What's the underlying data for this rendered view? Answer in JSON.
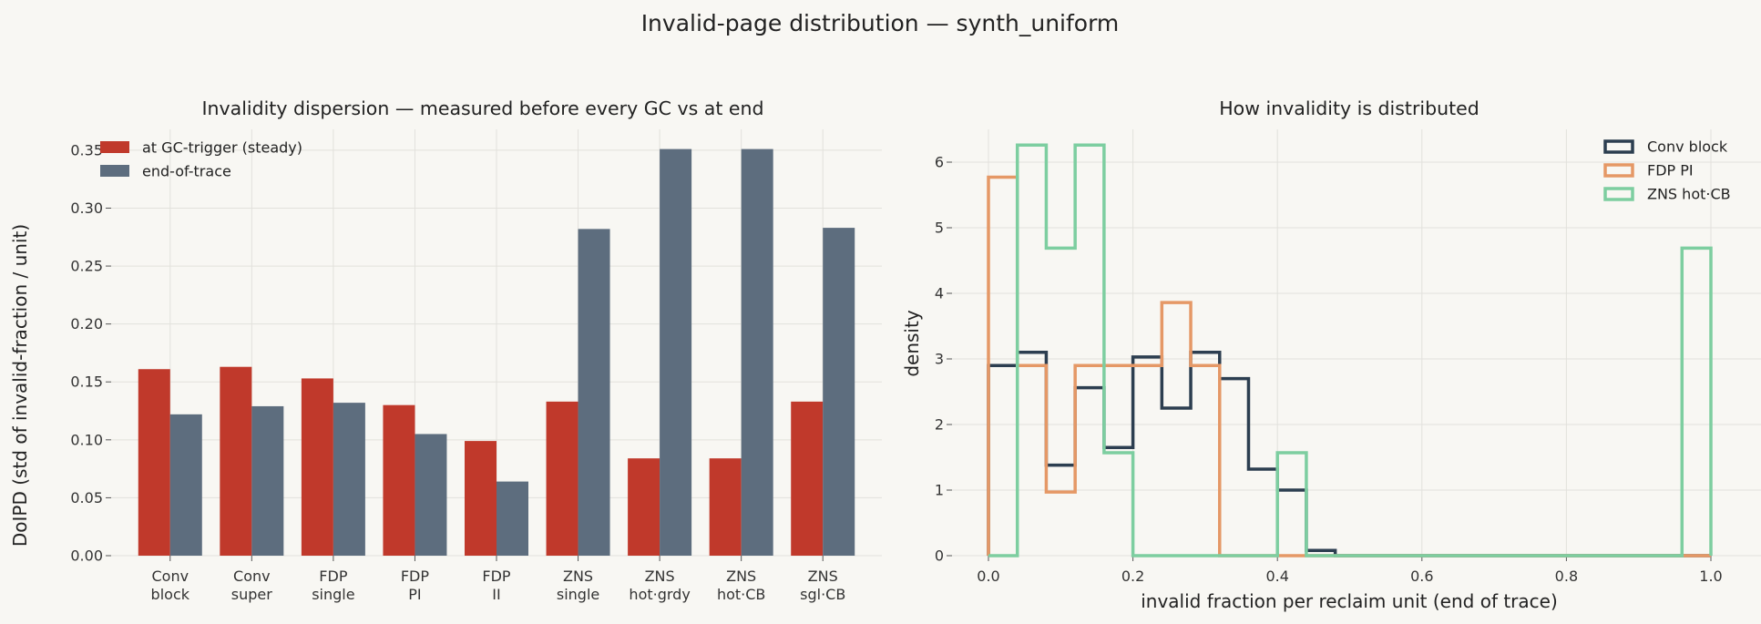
{
  "figure": {
    "suptitle": "Invalid-page distribution — synth_uniform"
  },
  "chart_data": [
    {
      "type": "bar",
      "title": "Invalidity dispersion — measured before every GC vs at end",
      "ylabel": "DoIPD  (std of invalid-fraction / unit)",
      "xlabel": "",
      "categories": [
        [
          "Conv",
          "block"
        ],
        [
          "Conv",
          "super"
        ],
        [
          "FDP",
          "single"
        ],
        [
          "FDP",
          "PI"
        ],
        [
          "FDP",
          "II"
        ],
        [
          "ZNS",
          "single"
        ],
        [
          "ZNS",
          "hot·grdy"
        ],
        [
          "ZNS",
          "hot·CB"
        ],
        [
          "ZNS",
          "sgl·CB"
        ]
      ],
      "series": [
        {
          "name": "at GC-trigger (steady)",
          "color": "#c0392b",
          "values": [
            0.161,
            0.163,
            0.153,
            0.13,
            0.099,
            0.133,
            0.084,
            0.084,
            0.133
          ]
        },
        {
          "name": "end-of-trace",
          "color": "#5d6d7e",
          "values": [
            0.122,
            0.129,
            0.132,
            0.105,
            0.064,
            0.282,
            0.351,
            0.351,
            0.283
          ]
        }
      ],
      "ylim": [
        0,
        0.368
      ],
      "yticks": [
        "0.00",
        "0.05",
        "0.10",
        "0.15",
        "0.20",
        "0.25",
        "0.30",
        "0.35"
      ],
      "grid": true,
      "legend": "top-left"
    },
    {
      "type": "histogram",
      "title": "How invalidity is distributed",
      "xlabel": "invalid fraction per reclaim unit (end of trace)",
      "ylabel": "density",
      "bin_width": 0.04,
      "xlim": [
        0,
        1
      ],
      "ylim": [
        0,
        6.5
      ],
      "xticks": [
        "0.0",
        "0.2",
        "0.4",
        "0.6",
        "0.8",
        "1.0"
      ],
      "yticks": [
        "0",
        "1",
        "2",
        "3",
        "4",
        "5",
        "6"
      ],
      "grid": true,
      "legend": "top-right",
      "series": [
        {
          "name": "Conv block",
          "color": "#2c3e50",
          "values": [
            2.9,
            3.1,
            1.38,
            2.56,
            1.65,
            3.03,
            2.25,
            3.1,
            2.7,
            1.32,
            1.0,
            0.08,
            0,
            0,
            0,
            0,
            0,
            0,
            0,
            0,
            0,
            0,
            0,
            0,
            0
          ]
        },
        {
          "name": "FDP PI",
          "color": "#e59866",
          "values": [
            5.77,
            2.9,
            0.97,
            2.9,
            2.9,
            2.9,
            3.86,
            2.9,
            0,
            0,
            0,
            0,
            0,
            0,
            0,
            0,
            0,
            0,
            0,
            0,
            0,
            0,
            0,
            0,
            0
          ]
        },
        {
          "name": "ZNS hot·CB",
          "color": "#7dcea0",
          "values": [
            0,
            6.26,
            4.69,
            6.26,
            1.57,
            0,
            0,
            0,
            0,
            0,
            1.57,
            0,
            0,
            0,
            0,
            0,
            0,
            0,
            0,
            0,
            0,
            0,
            0,
            0,
            4.69
          ]
        }
      ]
    }
  ]
}
